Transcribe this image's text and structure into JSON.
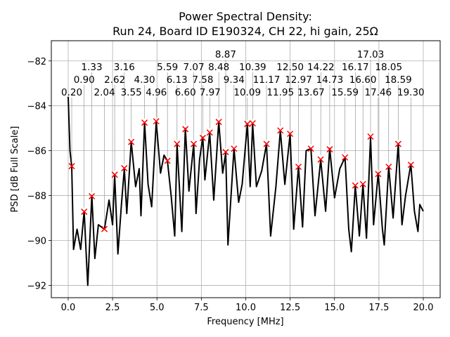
{
  "chart_data": {
    "type": "line",
    "title": "Power Spectral Density:",
    "subtitle": "Run 24, Board ID E190324, CH 22, hi gain, 25Ω",
    "xlabel": "Frequency [MHz]",
    "ylabel": "PSD [dB Full Scale]",
    "xlim": [
      -0.95,
      20.95
    ],
    "ylim": [
      -92.55,
      -81.1
    ],
    "xticks": [
      0.0,
      2.5,
      5.0,
      7.5,
      10.0,
      12.5,
      15.0,
      17.5,
      20.0
    ],
    "xtick_labels": [
      "0.0",
      "2.5",
      "5.0",
      "7.5",
      "10.0",
      "12.5",
      "15.0",
      "17.5",
      "20.0"
    ],
    "yticks": [
      -92,
      -90,
      -88,
      -86,
      -84,
      -82
    ],
    "ytick_labels": [
      "−92",
      "−90",
      "−88",
      "−86",
      "−84",
      "−82"
    ],
    "grid": true,
    "line_color": "#000000",
    "marker_color": "#ff0000",
    "series": [
      {
        "style": "line",
        "x": [
          0.0,
          0.1,
          0.2,
          0.3,
          0.5,
          0.7,
          0.9,
          1.05,
          1.1,
          1.33,
          1.5,
          1.7,
          2.04,
          2.3,
          2.5,
          2.62,
          2.8,
          3.0,
          3.16,
          3.3,
          3.55,
          3.8,
          4.0,
          4.1,
          4.3,
          4.5,
          4.7,
          4.96,
          5.2,
          5.4,
          5.59,
          5.8,
          6.0,
          6.13,
          6.4,
          6.6,
          6.8,
          7.07,
          7.2,
          7.4,
          7.58,
          7.7,
          7.97,
          8.2,
          8.48,
          8.7,
          8.87,
          9.0,
          9.34,
          9.6,
          9.8,
          10.09,
          10.25,
          10.39,
          10.6,
          10.9,
          11.17,
          11.4,
          11.7,
          11.95,
          12.2,
          12.5,
          12.7,
          12.97,
          13.2,
          13.4,
          13.67,
          13.9,
          14.22,
          14.5,
          14.73,
          15.0,
          15.3,
          15.59,
          15.8,
          15.95,
          16.17,
          16.4,
          16.6,
          16.8,
          17.03,
          17.2,
          17.46,
          17.7,
          17.8,
          18.05,
          18.3,
          18.59,
          18.8,
          19.0,
          19.3,
          19.5,
          19.7,
          19.8,
          20.0
        ],
        "y": [
          -83.6,
          -86.0,
          -86.7,
          -90.4,
          -89.5,
          -90.4,
          -88.7,
          -91.2,
          -92.0,
          -88.0,
          -90.8,
          -89.3,
          -89.5,
          -88.2,
          -89.3,
          -87.1,
          -90.6,
          -88.4,
          -86.8,
          -88.8,
          -85.6,
          -87.6,
          -86.8,
          -88.9,
          -84.75,
          -87.5,
          -88.5,
          -84.7,
          -87.0,
          -86.2,
          -86.45,
          -88.0,
          -89.8,
          -85.7,
          -89.6,
          -85.0,
          -87.8,
          -85.7,
          -88.8,
          -86.4,
          -85.4,
          -87.3,
          -85.2,
          -88.2,
          -84.7,
          -87.0,
          -86.1,
          -90.2,
          -85.9,
          -88.3,
          -87.5,
          -84.8,
          -87.6,
          -84.8,
          -87.6,
          -86.9,
          -85.7,
          -89.8,
          -87.6,
          -85.1,
          -87.5,
          -85.25,
          -89.5,
          -86.7,
          -89.4,
          -86.0,
          -85.9,
          -88.9,
          -86.4,
          -88.7,
          -85.9,
          -88.1,
          -86.8,
          -86.3,
          -89.5,
          -90.5,
          -87.55,
          -89.8,
          -87.5,
          -89.9,
          -85.4,
          -89.3,
          -87.0,
          -89.5,
          -90.2,
          -86.7,
          -89.0,
          -85.7,
          -89.3,
          -88.0,
          -86.6,
          -88.7,
          -89.6,
          -88.4,
          -88.7
        ]
      },
      {
        "style": "markers",
        "marker": "x",
        "x": [
          0.2,
          0.9,
          1.33,
          2.04,
          2.62,
          3.16,
          3.55,
          4.3,
          4.96,
          5.59,
          6.13,
          6.6,
          7.07,
          7.58,
          7.97,
          8.48,
          8.87,
          9.34,
          10.09,
          10.39,
          11.17,
          11.95,
          12.5,
          12.97,
          13.67,
          14.22,
          14.73,
          15.59,
          16.17,
          16.6,
          17.03,
          17.46,
          18.05,
          18.59,
          19.3
        ],
        "y": [
          -86.69,
          -88.72,
          -88.03,
          -89.49,
          -87.07,
          -86.78,
          -85.61,
          -84.75,
          -84.69,
          -86.45,
          -85.7,
          -85.04,
          -85.7,
          -85.43,
          -85.19,
          -84.72,
          -86.06,
          -85.91,
          -84.81,
          -84.78,
          -85.7,
          -85.1,
          -85.25,
          -86.72,
          -85.91,
          -86.39,
          -85.94,
          -86.3,
          -87.55,
          -87.49,
          -85.37,
          -87.04,
          -86.72,
          -85.7,
          -86.63
        ],
        "labels": [
          "0.20",
          "0.90",
          "1.33",
          "2.04",
          "2.62",
          "3.16",
          "3.55",
          "4.30",
          "4.96",
          "5.59",
          "6.13",
          "6.60",
          "7.07",
          "7.58",
          "7.97",
          "8.48",
          "8.87",
          "9.34",
          "10.09",
          "10.39",
          "11.17",
          "11.95",
          "12.50",
          "12.97",
          "13.67",
          "14.22",
          "14.73",
          "15.59",
          "16.17",
          "16.60",
          "17.03",
          "17.46",
          "18.05",
          "18.59",
          "19.30"
        ]
      }
    ]
  }
}
